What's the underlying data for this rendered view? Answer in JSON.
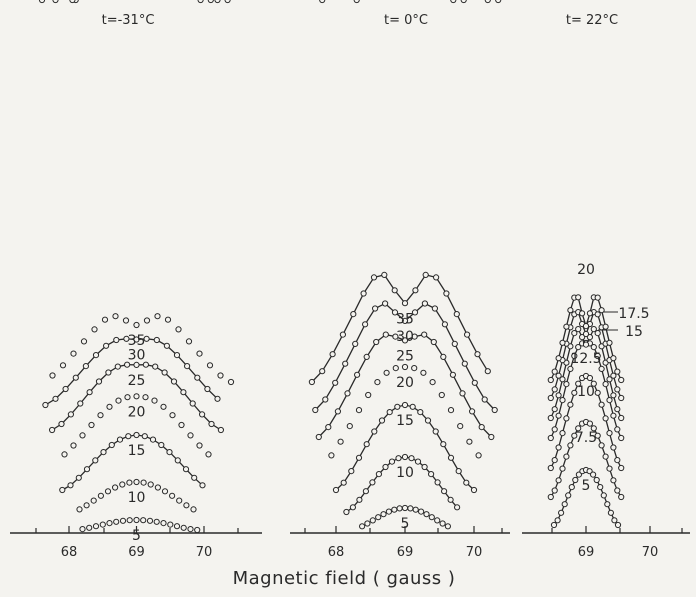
{
  "xlabel": "Magnetic field ( gauss )",
  "colors": {
    "ink": "#2a2a2a",
    "marker_fill": "#f4f3ef",
    "background": "#f4f3ef"
  },
  "chart_data": [
    {
      "type": "line",
      "title": "t=-31°C",
      "xlabel": "Magnetic field ( gauss )",
      "xlim": [
        67.5,
        70.5
      ],
      "x_ticks": [
        68,
        69,
        70
      ],
      "center_field": 69.0,
      "grid": false,
      "series": [
        {
          "name": "5",
          "label": "5",
          "peak_width_gauss": 1.8,
          "split_depth": 0.0,
          "amplitude": 10,
          "baseline_level": 0
        },
        {
          "name": "10",
          "label": "10",
          "peak_width_gauss": 1.9,
          "split_depth": 0.0,
          "amplitude": 30,
          "baseline_level": 18
        },
        {
          "name": "15",
          "label": "15",
          "peak_width_gauss": 2.2,
          "split_depth": 0.0,
          "amplitude": 55,
          "baseline_level": 40
        },
        {
          "name": "20",
          "label": "20",
          "peak_width_gauss": 2.4,
          "split_depth": 0.02,
          "amplitude": 65,
          "baseline_level": 70
        },
        {
          "name": "25",
          "label": "25",
          "peak_width_gauss": 2.5,
          "split_depth": 0.07,
          "amplitude": 70,
          "baseline_level": 100
        },
        {
          "name": "30",
          "label": "30",
          "peak_width_gauss": 2.7,
          "split_depth": 0.09,
          "amplitude": 72,
          "baseline_level": 125
        },
        {
          "name": "35",
          "label": "35",
          "peak_width_gauss": 2.8,
          "split_depth": 0.24,
          "amplitude": 75,
          "baseline_level": 148
        }
      ]
    },
    {
      "type": "line",
      "title": "t= 0°C",
      "xlabel": "Magnetic field ( gauss )",
      "xlim": [
        67.5,
        70.5
      ],
      "x_ticks": [
        68,
        69,
        70
      ],
      "center_field": 69.0,
      "grid": false,
      "series": [
        {
          "name": "5",
          "label": "5",
          "peak_width_gauss": 1.4,
          "split_depth": 0.0,
          "amplitude": 20,
          "baseline_level": 2
        },
        {
          "name": "10",
          "label": "10",
          "peak_width_gauss": 1.7,
          "split_depth": 0.0,
          "amplitude": 55,
          "baseline_level": 18
        },
        {
          "name": "15",
          "label": "15",
          "peak_width_gauss": 2.0,
          "split_depth": 0.0,
          "amplitude": 85,
          "baseline_level": 40
        },
        {
          "name": "20",
          "label": "20",
          "peak_width_gauss": 2.4,
          "split_depth": 0.03,
          "amplitude": 100,
          "baseline_level": 66
        },
        {
          "name": "25",
          "label": "25",
          "peak_width_gauss": 2.5,
          "split_depth": 0.16,
          "amplitude": 115,
          "baseline_level": 93
        },
        {
          "name": "30",
          "label": "30",
          "peak_width_gauss": 2.6,
          "split_depth": 0.27,
          "amplitude": 122,
          "baseline_level": 120
        },
        {
          "name": "35",
          "label": "35",
          "peak_width_gauss": 2.7,
          "split_depth": 0.37,
          "amplitude": 125,
          "baseline_level": 148
        }
      ]
    },
    {
      "type": "line",
      "title": "t= 22°C",
      "xlabel": "Magnetic field ( gauss )",
      "xlim": [
        67.5,
        70.5
      ],
      "x_ticks": [
        69,
        70
      ],
      "center_field": 69.0,
      "grid": false,
      "series": [
        {
          "name": "5",
          "label": "5",
          "peak_width_gauss": 1.0,
          "split_depth": 0.0,
          "amplitude": 55,
          "baseline_level": 5
        },
        {
          "name": "7.5",
          "label": "7.5",
          "peak_width_gauss": 1.1,
          "split_depth": 0.0,
          "amplitude": 75,
          "baseline_level": 33
        },
        {
          "name": "10",
          "label": "10",
          "peak_width_gauss": 1.1,
          "split_depth": 0.0,
          "amplitude": 92,
          "baseline_level": 62
        },
        {
          "name": "12.5",
          "label": "12.5",
          "peak_width_gauss": 1.1,
          "split_depth": 0.05,
          "amplitude": 100,
          "baseline_level": 92
        },
        {
          "name": "15",
          "label": "15",
          "peak_width_gauss": 1.1,
          "split_depth": 0.28,
          "amplitude": 102,
          "baseline_level": 112
        },
        {
          "name": "17.5",
          "label": "17.5",
          "peak_width_gauss": 1.1,
          "split_depth": 0.36,
          "amplitude": 100,
          "baseline_level": 132
        },
        {
          "name": "20",
          "label": "20",
          "peak_width_gauss": 1.1,
          "split_depth": 0.45,
          "amplitude": 98,
          "baseline_level": 150
        }
      ]
    }
  ]
}
